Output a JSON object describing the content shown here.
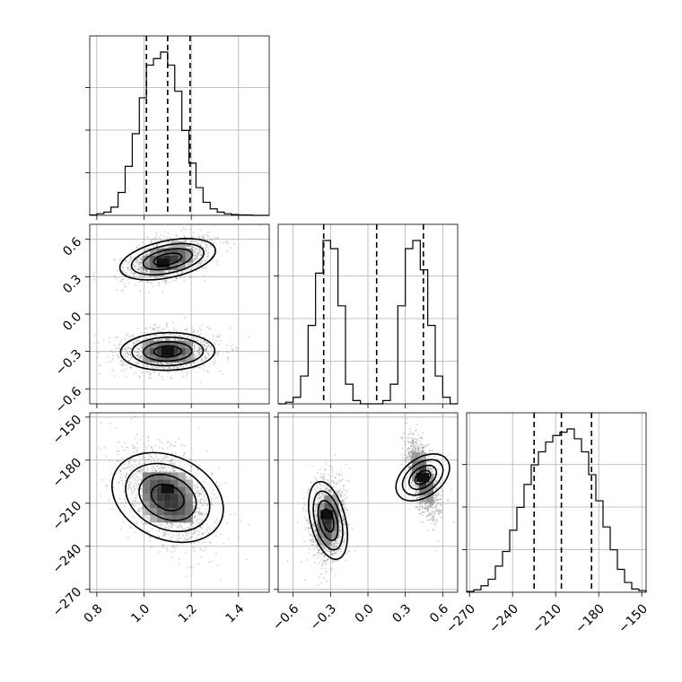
{
  "chart_data": {
    "type": "corner",
    "grid": true,
    "parameters": [
      {
        "range": [
          0.77,
          1.53
        ],
        "ticks": [
          "0.8",
          "1.0",
          "1.2",
          "1.4"
        ],
        "tick_values": [
          0.8,
          1.0,
          1.2,
          1.4
        ]
      },
      {
        "range": [
          -0.72,
          0.72
        ],
        "ticks": [
          "−0.6",
          "−0.3",
          "0.0",
          "0.3",
          "0.6"
        ],
        "tick_values": [
          -0.6,
          -0.3,
          0.0,
          0.3,
          0.6
        ]
      },
      {
        "range": [
          -272,
          -147
        ],
        "ticks": [
          "−270",
          "−240",
          "−210",
          "−180",
          "−150"
        ],
        "tick_values": [
          -270,
          -240,
          -210,
          -180,
          -150
        ]
      }
    ],
    "histograms": [
      {
        "param": 0,
        "bins": [
          0.77,
          0.8,
          0.83,
          0.86,
          0.89,
          0.92,
          0.95,
          0.98,
          1.01,
          1.04,
          1.07,
          1.1,
          1.13,
          1.16,
          1.19,
          1.22,
          1.25,
          1.28,
          1.31,
          1.34,
          1.37,
          1.4,
          1.43,
          1.46,
          1.49,
          1.53
        ],
        "counts": [
          0.3,
          1,
          2,
          5,
          14,
          30,
          50,
          72,
          92,
          96,
          100,
          92,
          76,
          52,
          32,
          17,
          8,
          4,
          2,
          1,
          0.5,
          0.3,
          0.2,
          0,
          0
        ],
        "quantiles": [
          1.01,
          1.1,
          1.195
        ]
      },
      {
        "param": 1,
        "bins": [
          -0.72,
          -0.66,
          -0.6,
          -0.54,
          -0.48,
          -0.42,
          -0.36,
          -0.3,
          -0.24,
          -0.18,
          -0.12,
          -0.06,
          0.0,
          0.06,
          0.12,
          0.18,
          0.24,
          0.3,
          0.36,
          0.42,
          0.48,
          0.54,
          0.6,
          0.66,
          0.72
        ],
        "counts": [
          0,
          1,
          4,
          17,
          48,
          80,
          100,
          95,
          60,
          12,
          2,
          0,
          0,
          0,
          2,
          12,
          60,
          95,
          100,
          82,
          48,
          17,
          4,
          0
        ],
        "quantiles": [
          -0.355,
          0.07,
          0.445
        ]
      },
      {
        "param": 2,
        "bins": [
          -272,
          -267,
          -262,
          -257,
          -252,
          -247,
          -242,
          -237,
          -232,
          -227,
          -222,
          -217,
          -212,
          -207,
          -202,
          -197,
          -192,
          -187,
          -182,
          -177,
          -172,
          -167,
          -162,
          -157,
          -152,
          -147
        ],
        "counts": [
          0.5,
          1.5,
          4,
          8,
          16,
          25,
          38,
          52,
          66,
          78,
          86,
          92,
          96,
          98,
          100,
          94,
          86,
          72,
          56,
          40,
          26,
          14,
          6,
          2,
          1
        ],
        "quantiles": [
          -225,
          -206,
          -185
        ]
      }
    ],
    "panels_2d": [
      {
        "x_param": 0,
        "y_param": 1,
        "modes": [
          {
            "mean": [
              1.1,
              0.44
            ],
            "std": [
              0.085,
              0.085
            ],
            "rho": 0.4,
            "peak": [
              1.08,
              0.41
            ]
          },
          {
            "mean": [
              1.1,
              -0.3
            ],
            "std": [
              0.095,
              0.075
            ],
            "rho": 0.05,
            "peak": [
              1.1,
              -0.3
            ]
          }
        ]
      },
      {
        "x_param": 0,
        "y_param": 2,
        "modes": [
          {
            "mean": [
              1.1,
              -206
            ],
            "std": [
              0.1,
              17
            ],
            "rho": -0.45,
            "peak": [
              1.1,
              -200
            ]
          }
        ]
      },
      {
        "x_param": 1,
        "y_param": 2,
        "modes": [
          {
            "mean": [
              -0.32,
              -222
            ],
            "std": [
              0.065,
              14
            ],
            "rho": 0.1,
            "peak": [
              -0.33,
              -218
            ]
          },
          {
            "mean": [
              0.44,
              -192
            ],
            "std": [
              0.06,
              13
            ],
            "rho": -0.55,
            "peak": [
              0.44,
              -192
            ]
          }
        ]
      }
    ]
  }
}
